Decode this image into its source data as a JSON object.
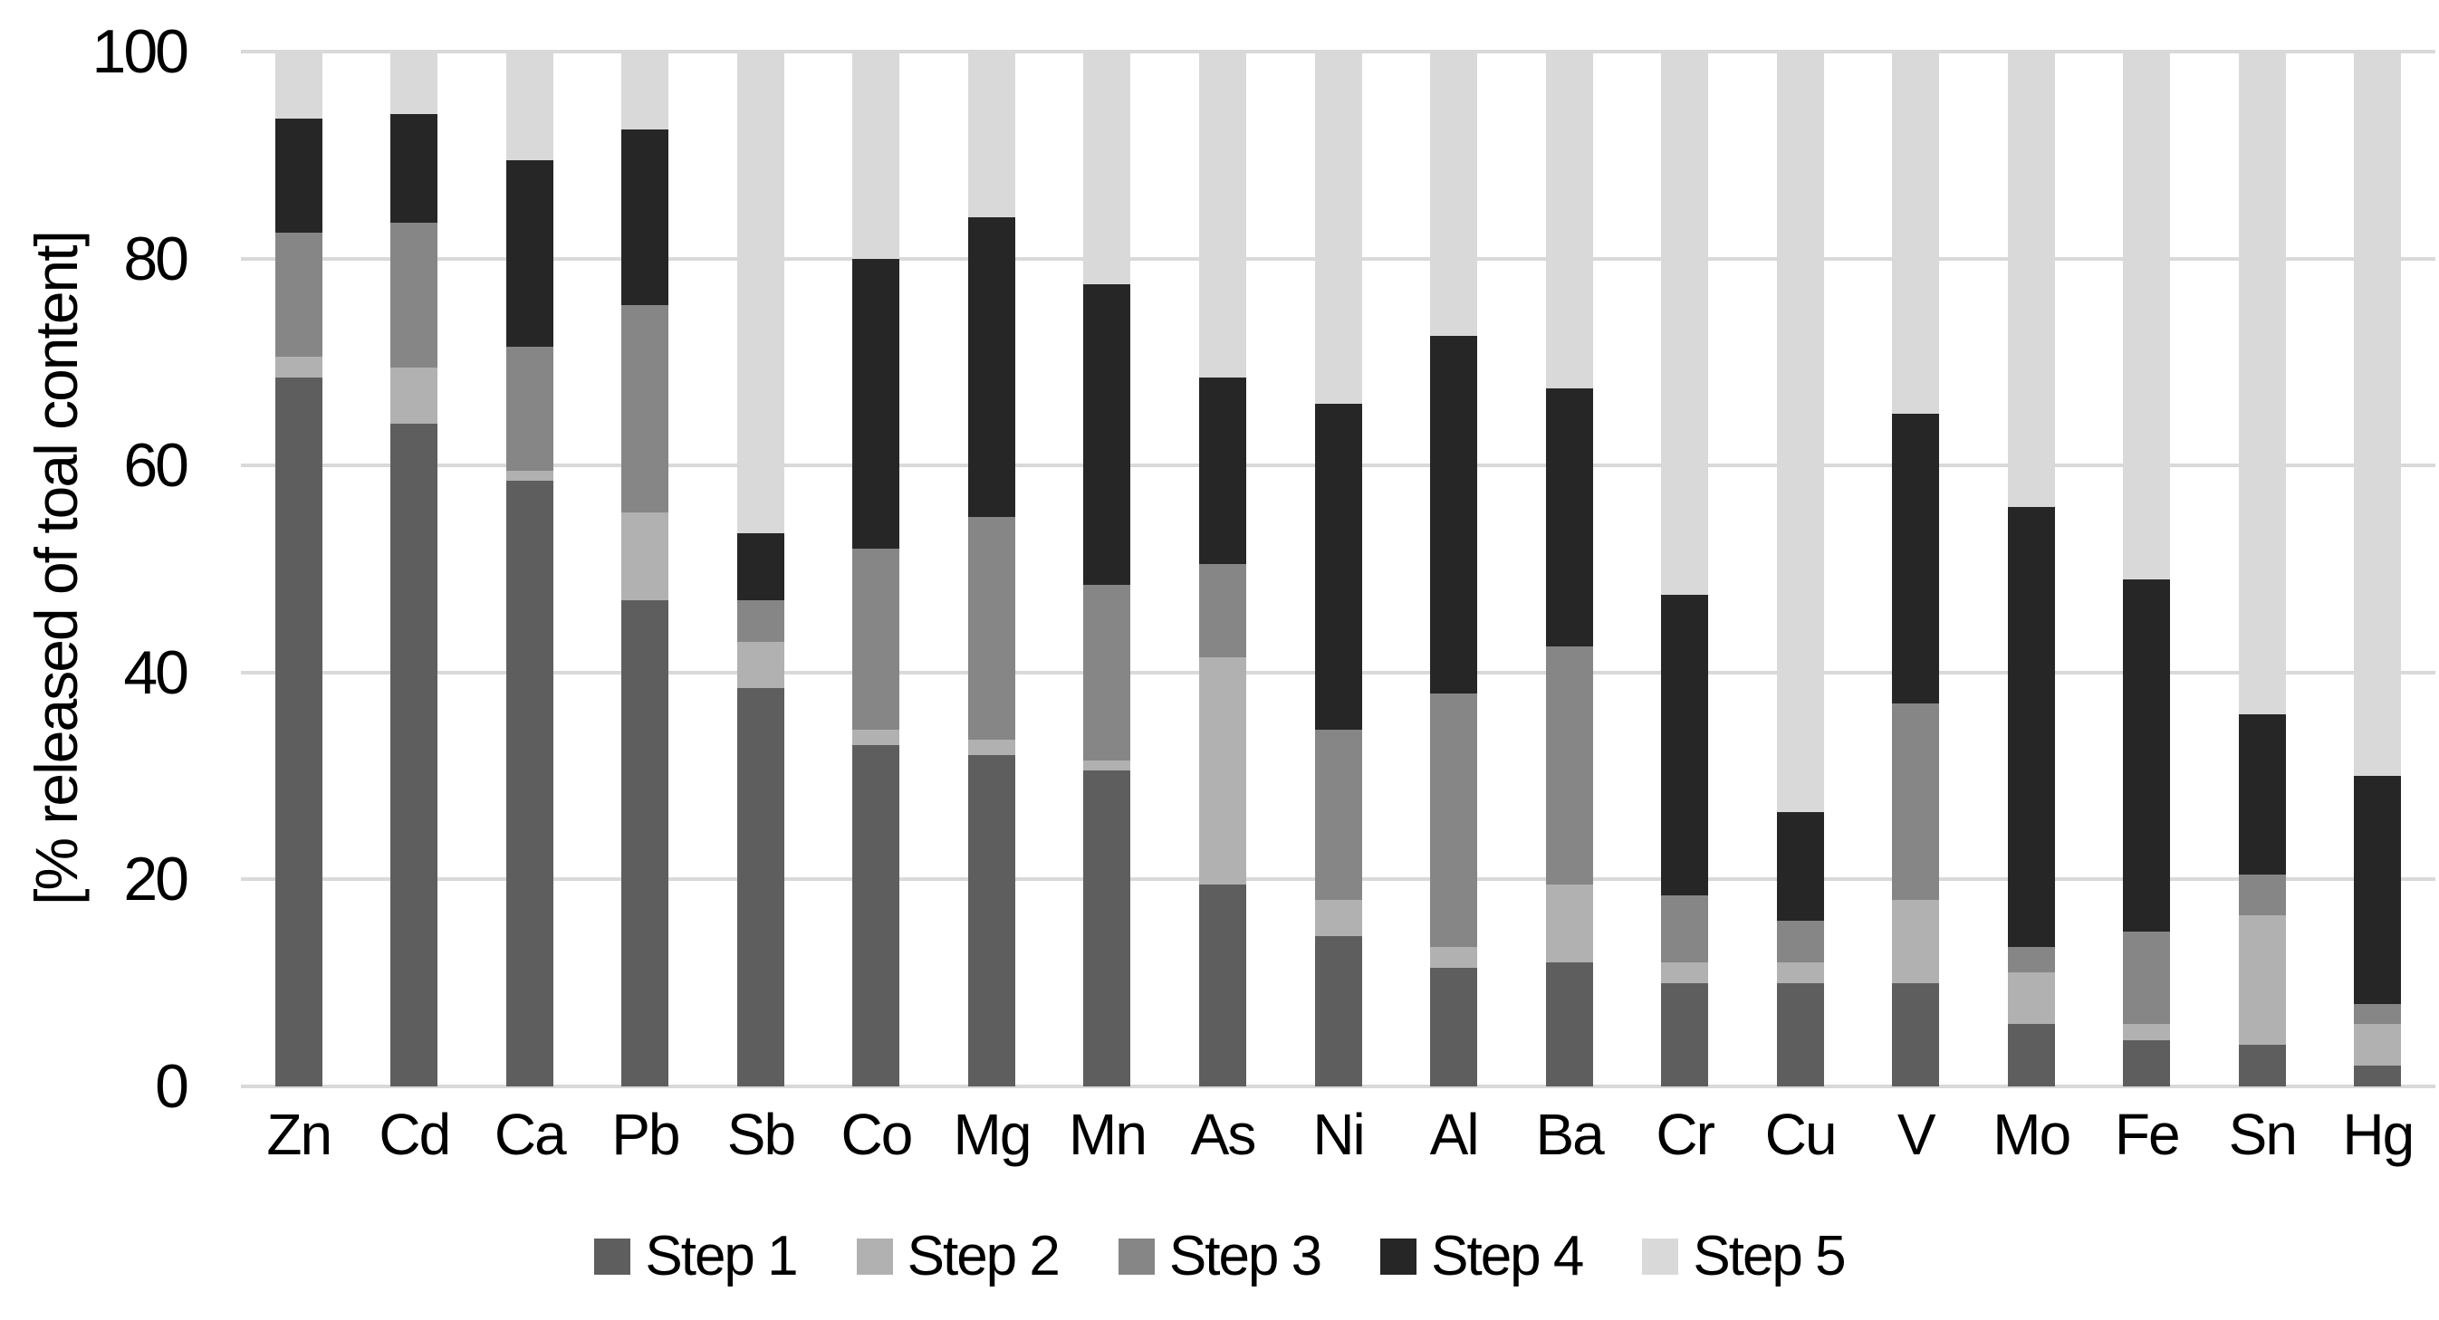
{
  "chart_data": {
    "type": "bar",
    "stacked": true,
    "title": "",
    "xlabel": "",
    "ylabel": "[% released of toal content]",
    "ylim": [
      0,
      100
    ],
    "yticks": [
      0,
      20,
      40,
      60,
      80,
      100
    ],
    "grid": "horizontal",
    "legend_position": "bottom",
    "categories": [
      "Zn",
      "Cd",
      "Ca",
      "Pb",
      "Sb",
      "Co",
      "Mg",
      "Mn",
      "As",
      "Ni",
      "Al",
      "Ba",
      "Cr",
      "Cu",
      "V",
      "Mo",
      "Fe",
      "Sn",
      "Hg"
    ],
    "series": [
      {
        "name": "Step 1",
        "color": "#5e5e5e",
        "values": [
          68.5,
          64.0,
          58.5,
          47.0,
          38.5,
          33.0,
          32.0,
          30.5,
          19.5,
          14.5,
          11.5,
          12.0,
          10.0,
          10.0,
          10.0,
          6.0,
          4.5,
          4.0,
          2.0
        ]
      },
      {
        "name": "Step 2",
        "color": "#b1b1b1",
        "values": [
          2.0,
          5.5,
          1.0,
          8.5,
          4.5,
          1.5,
          1.5,
          1.0,
          22.0,
          3.5,
          2.0,
          7.5,
          2.0,
          2.0,
          8.0,
          5.0,
          1.5,
          12.5,
          4.0
        ]
      },
      {
        "name": "Step 3",
        "color": "#868686",
        "values": [
          12.0,
          14.0,
          12.0,
          20.0,
          4.0,
          17.5,
          21.5,
          17.0,
          9.0,
          16.5,
          24.5,
          23.0,
          6.5,
          4.0,
          19.0,
          2.5,
          9.0,
          4.0,
          2.0
        ]
      },
      {
        "name": "Step 4",
        "color": "#262626",
        "values": [
          11.0,
          10.5,
          18.0,
          17.0,
          6.5,
          28.0,
          29.0,
          29.0,
          18.0,
          31.5,
          34.5,
          25.0,
          29.0,
          10.5,
          28.0,
          42.5,
          34.0,
          15.5,
          22.0
        ]
      },
      {
        "name": "Step 5",
        "color": "#d9d9d9",
        "values": [
          6.5,
          6.0,
          10.5,
          7.5,
          46.5,
          20.0,
          16.0,
          22.5,
          31.5,
          34.0,
          27.5,
          32.5,
          52.5,
          73.5,
          35.0,
          44.0,
          51.0,
          64.0,
          70.0
        ]
      }
    ]
  },
  "colors": {
    "background": "#ffffff",
    "gridline": "#d9d9d9",
    "text": "#000000"
  }
}
